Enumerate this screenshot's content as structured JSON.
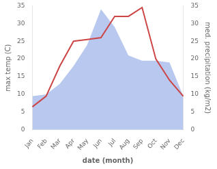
{
  "chart_data": {
    "type": "line",
    "categories": [
      "Jan",
      "Feb",
      "Mar",
      "Apr",
      "May",
      "Jun",
      "Jul",
      "Aug",
      "Sep",
      "Oct",
      "Nov",
      "Dec"
    ],
    "series": [
      {
        "type": "area",
        "color": "#b8c8ee",
        "axis": "y2",
        "values": [
          9.5,
          10.0,
          13.0,
          18.0,
          24.0,
          34.0,
          29.0,
          21.0,
          19.5,
          19.5,
          19.0,
          9.5
        ]
      },
      {
        "type": "line",
        "color": "#cc4444",
        "values": [
          6.5,
          9.5,
          18.0,
          25.0,
          25.5,
          26.0,
          32.0,
          32.0,
          34.5,
          20.0,
          14.0,
          9.5
        ]
      }
    ],
    "xlabel": "date (month)",
    "ylabel": "max temp (C)",
    "y2label": "med. precipitation (kg/m2)",
    "ylim": [
      0,
      35
    ],
    "yticks": [
      0,
      5,
      10,
      15,
      20,
      25,
      30,
      35
    ],
    "y2lim": [
      0,
      35
    ],
    "y2ticks": [
      0,
      5,
      10,
      15,
      20,
      25,
      30,
      35
    ],
    "grid": false
  }
}
